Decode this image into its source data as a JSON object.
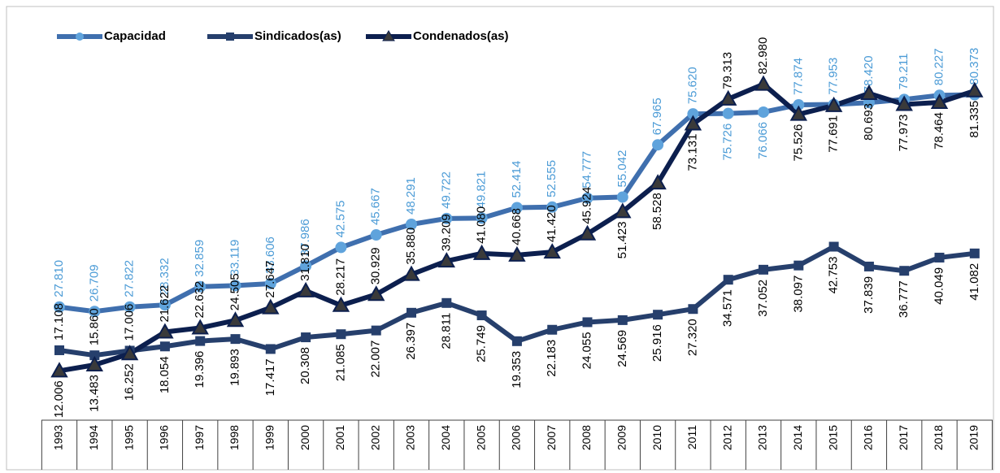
{
  "chart_data": {
    "type": "line",
    "categories": [
      "1993",
      "1994",
      "1995",
      "1996",
      "1997",
      "1998",
      "1999",
      "2000",
      "2001",
      "2002",
      "2003",
      "2004",
      "2005",
      "2006",
      "2007",
      "2008",
      "2009",
      "2010",
      "2011",
      "2012",
      "2013",
      "2014",
      "2015",
      "2016",
      "2017",
      "2018",
      "2019"
    ],
    "legend": "top-left",
    "series": [
      {
        "name": "Capacidad",
        "color": "#3f6fae",
        "marker": "circle",
        "marker_color": "#5fa3dc",
        "label_color": "#4b9bd6",
        "values": [
          27810,
          26709,
          27822,
          28332,
          32859,
          33119,
          33606,
          37986,
          42575,
          45667,
          48291,
          49722,
          49821,
          52414,
          52555,
          54777,
          55042,
          67965,
          75620,
          75726,
          76066,
          77874,
          77953,
          78420,
          79211,
          80227,
          80373
        ],
        "value_labels": [
          "27.810",
          "26.709",
          "27.822",
          "28.332",
          "32.859",
          "33.119",
          "33.606",
          "37.986",
          "42.575",
          "45.667",
          "48.291",
          "49.722",
          "49.821",
          "52.414",
          "52.555",
          "54.777",
          "55.042",
          "67.965",
          "75.620",
          "75.726",
          "76.066",
          "77.874",
          "77.953",
          "78.420",
          "79.211",
          "80.227",
          "80.373"
        ]
      },
      {
        "name": "Sindicados(as)",
        "color": "#263f6c",
        "marker": "square",
        "marker_color": "#263f6c",
        "label_color": "#000000",
        "values": [
          17108,
          15860,
          17006,
          18054,
          19396,
          19893,
          17417,
          20308,
          21085,
          22007,
          26397,
          28811,
          25749,
          19353,
          22183,
          24055,
          24569,
          25916,
          27320,
          34571,
          37052,
          38097,
          42753,
          37839,
          36777,
          40049,
          41082
        ],
        "value_labels": [
          "17.108",
          "15.860",
          "17.006",
          "18.054",
          "19.396",
          "19.893",
          "17.417",
          "20.308",
          "21.085",
          "22.007",
          "26.397",
          "28.811",
          "25.749",
          "19.353",
          "22.183",
          "24.055",
          "24.569",
          "25.916",
          "27.320",
          "34.571",
          "37.052",
          "38.097",
          "42.753",
          "37.839",
          "36.777",
          "40.049",
          "41.082"
        ]
      },
      {
        "name": "Condenados(as)",
        "color": "#0c1f4e",
        "marker": "triangle",
        "marker_color": "#0c1f4e",
        "label_color": "#000000",
        "values": [
          12006,
          13483,
          16252,
          21622,
          22632,
          24505,
          27647,
          31810,
          28217,
          30929,
          35880,
          39209,
          41080,
          40668,
          41420,
          45924,
          51423,
          58528,
          73131,
          79313,
          82980,
          75526,
          77691,
          80693,
          77973,
          78464,
          81335
        ],
        "value_labels": [
          "12.006",
          "13.483",
          "16.252",
          "21.622",
          "22.632",
          "24.505",
          "27.647",
          "31.810",
          "28.217",
          "30.929",
          "35.880",
          "39.209",
          "41.080",
          "40.668",
          "41.420",
          "45.924",
          "51.423",
          "58.528",
          "73.131",
          "79.313",
          "82.980",
          "75.526",
          "77.691",
          "80.693",
          "77.973",
          "78.464",
          "81.335"
        ]
      }
    ]
  }
}
